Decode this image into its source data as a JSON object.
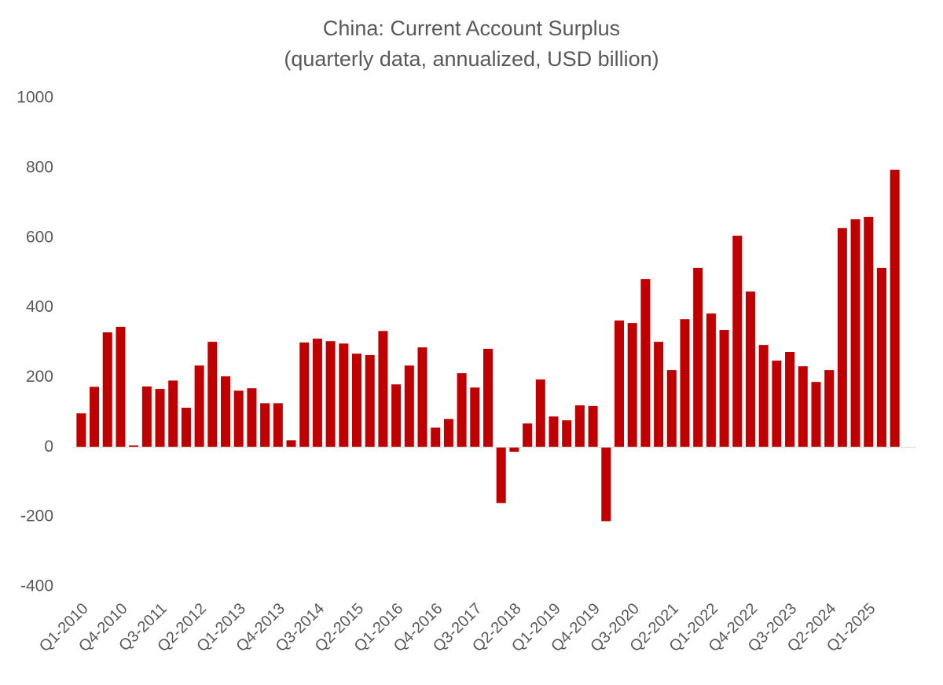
{
  "chart_data": {
    "type": "bar",
    "title": "China: Current Account Surplus",
    "subtitle": "(quarterly data, annualized, USD billion)",
    "categories": [
      "Q1-2010",
      null,
      null,
      "Q4-2010",
      null,
      null,
      "Q3-2011",
      null,
      null,
      "Q2-2012",
      null,
      null,
      "Q1-2013",
      null,
      null,
      "Q4-2013",
      null,
      null,
      "Q3-2014",
      null,
      null,
      "Q2-2015",
      null,
      null,
      "Q1-2016",
      null,
      null,
      "Q4-2016",
      null,
      null,
      "Q3-2017",
      null,
      null,
      "Q2-2018",
      null,
      null,
      "Q1-2019",
      null,
      null,
      "Q4-2019",
      null,
      null,
      "Q3-2020",
      null,
      null,
      "Q2-2021",
      null,
      null,
      "Q1-2022",
      null,
      null,
      "Q4-2022",
      null,
      null,
      "Q3-2023",
      null,
      null,
      "Q2-2024",
      null,
      null,
      "Q1-2025",
      null,
      null
    ],
    "values": [
      97,
      173,
      329,
      345,
      5,
      174,
      167,
      191,
      113,
      234,
      302,
      203,
      162,
      169,
      126,
      126,
      20,
      300,
      311,
      304,
      297,
      268,
      264,
      333,
      180,
      234,
      286,
      56,
      81,
      212,
      171,
      282,
      -160,
      -13,
      68,
      194,
      88,
      77,
      120,
      118,
      -212,
      363,
      356,
      482,
      302,
      221,
      367,
      514,
      383,
      336,
      606,
      446,
      293,
      248,
      273,
      232,
      187,
      221,
      628,
      653,
      660,
      514,
      795
    ],
    "color": "#c00000",
    "ylim": [
      -400,
      1000
    ],
    "yticks": [
      -400,
      -200,
      0,
      200,
      400,
      600,
      800,
      1000
    ],
    "grid": false
  }
}
